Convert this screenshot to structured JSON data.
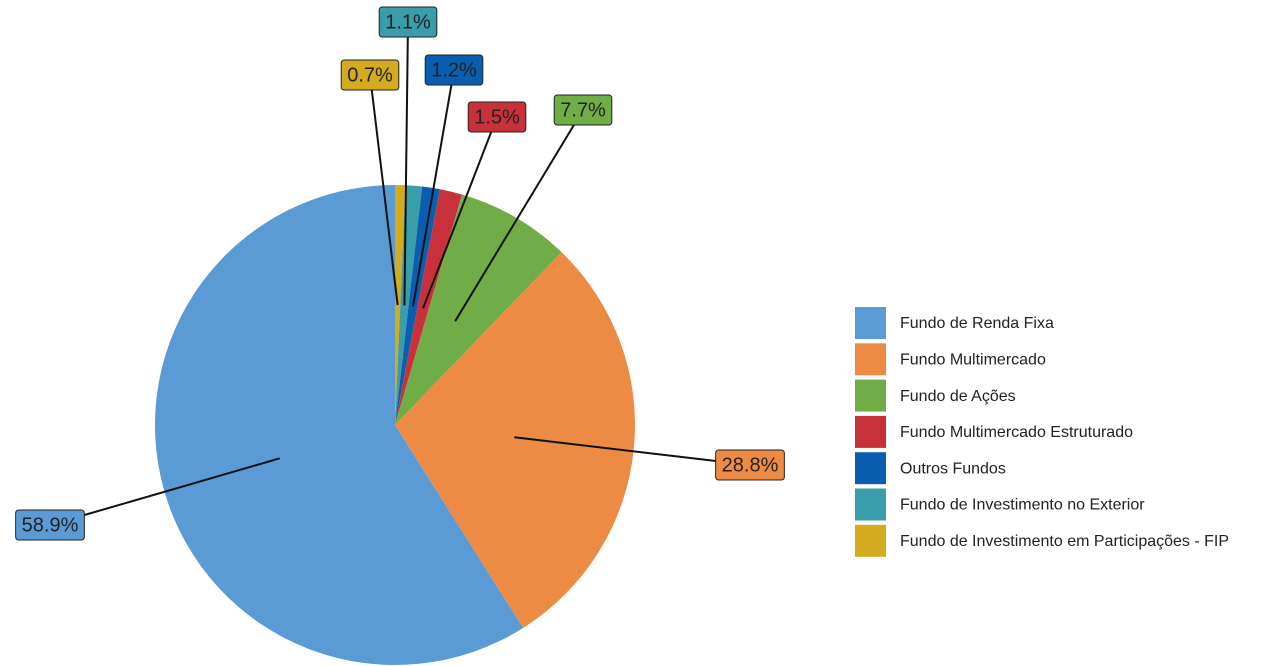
{
  "chart_data": {
    "type": "pie",
    "categories": [
      "Fundo de Renda Fixa",
      "Fundo Multimercado",
      "Fundo de Ações",
      "Fundo Multimercado Estruturado",
      "Outros Fundos",
      "Fundo de Investimento no Exterior",
      "Fundo de Investimento em Participações - FIP"
    ],
    "values": [
      58.9,
      28.8,
      7.7,
      1.5,
      1.2,
      1.1,
      0.7
    ],
    "value_labels": [
      "58.9%",
      "28.8%",
      "7.7%",
      "1.5%",
      "1.2%",
      "1.1%",
      "0.7%"
    ],
    "colors": [
      "#5b9bd5",
      "#ed8b45",
      "#70ad47",
      "#c9313a",
      "#0a5eb0",
      "#3a9eaa",
      "#d4aa1f"
    ],
    "legend": "right"
  }
}
